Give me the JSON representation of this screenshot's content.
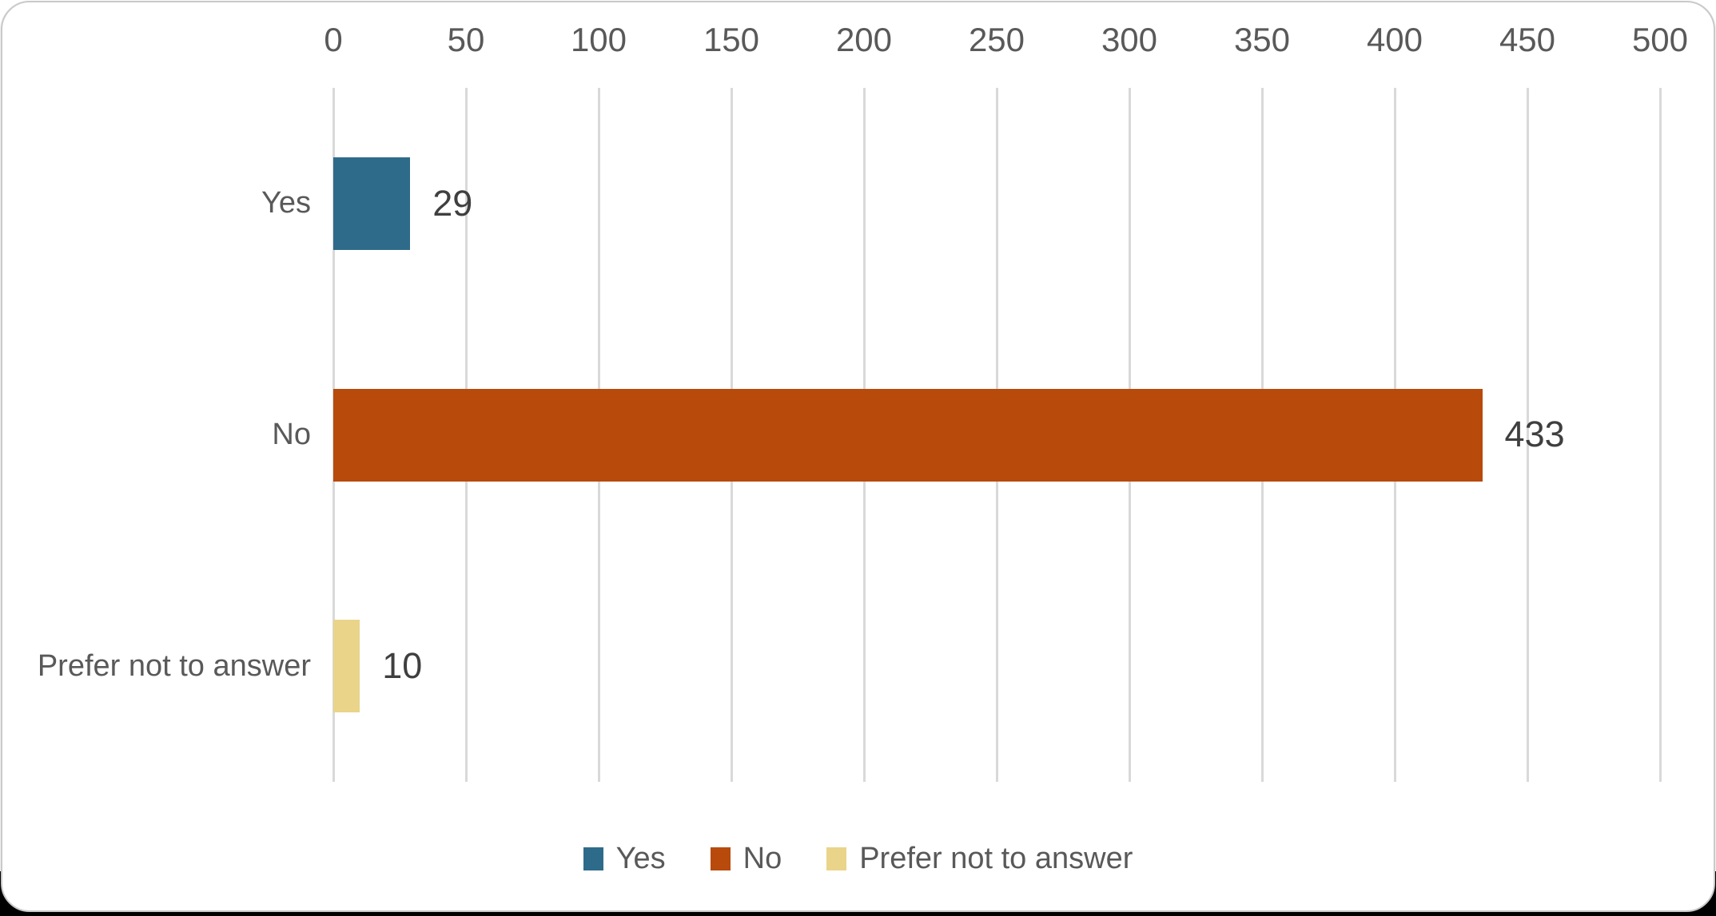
{
  "chart_data": {
    "type": "bar",
    "orientation": "horizontal",
    "title": "",
    "xlabel": "",
    "ylabel": "",
    "categories": [
      "Yes",
      "No",
      "Prefer not to answer"
    ],
    "values": [
      29,
      433,
      10
    ],
    "data_labels": [
      "29",
      "433",
      "10"
    ],
    "series_colors": [
      "#2e6b8a",
      "#b84a0b",
      "#e9d489"
    ],
    "xlim": [
      0,
      500
    ],
    "x_ticks": [
      0,
      50,
      100,
      150,
      200,
      250,
      300,
      350,
      400,
      450,
      500
    ],
    "tick_label_position": "top",
    "grid": "vertical",
    "gridline_color": "#d9d9d9",
    "legend": {
      "position": "bottom",
      "entries": [
        {
          "label": "Yes",
          "color": "#2e6b8a"
        },
        {
          "label": "No",
          "color": "#b84a0b"
        },
        {
          "label": "Prefer not to answer",
          "color": "#e9d489"
        }
      ]
    }
  },
  "colors": {
    "card_background": "#ffffff",
    "card_border": "#c9c9c9",
    "outer_bottom_band": "#000000",
    "axis_text": "#595959",
    "category_text": "#595959",
    "value_text": "#3f3f3f",
    "legend_text": "#595959"
  }
}
